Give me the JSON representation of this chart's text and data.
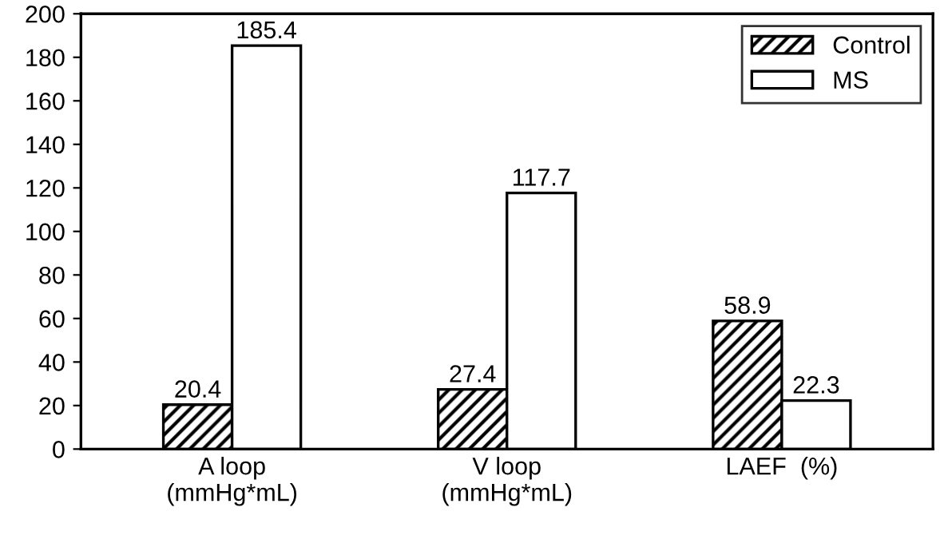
{
  "chart_data": {
    "type": "bar",
    "categories": [
      "A loop\n(mmHg*mL)",
      "V loop\n(mmHg*mL)",
      "LAEF  (%)"
    ],
    "series": [
      {
        "name": "Control",
        "color": "#000000",
        "values": [
          20.4,
          27.4,
          58.9
        ]
      },
      {
        "name": "MS",
        "color": "#ffffff",
        "values": [
          185.4,
          117.7,
          22.3
        ]
      }
    ],
    "ylim": [
      0,
      200
    ],
    "yticks": [
      0,
      20,
      40,
      60,
      80,
      100,
      120,
      140,
      160,
      180,
      200
    ],
    "data_labels": true,
    "grid": false,
    "legend": "top right"
  }
}
